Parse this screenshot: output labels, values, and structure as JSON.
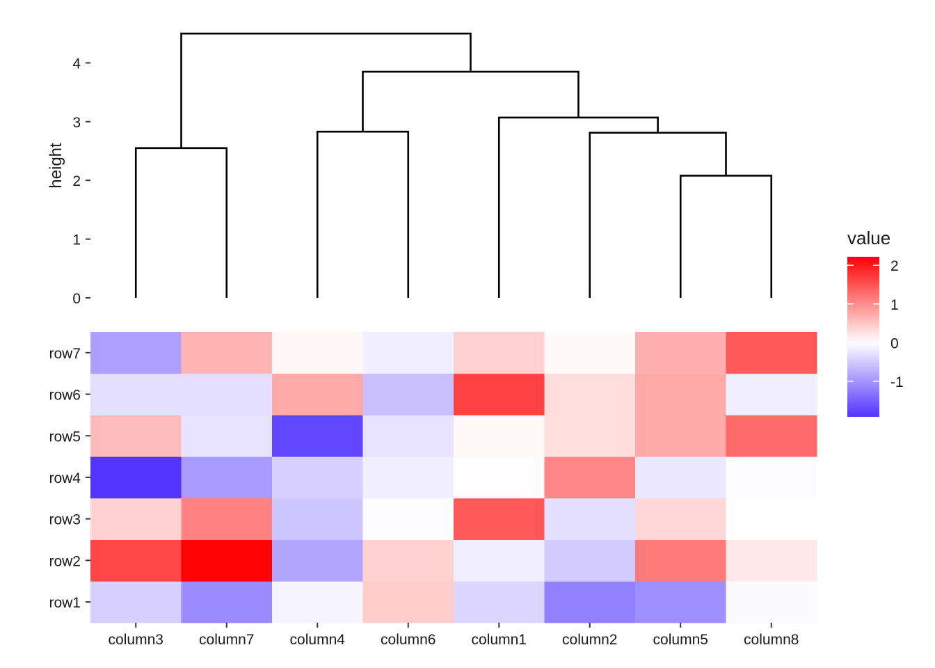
{
  "chart_data": [
    {
      "type": "dendrogram",
      "ylabel": "height",
      "ylim": [
        0,
        4.5
      ],
      "yticks": [
        0,
        1,
        2,
        3,
        4
      ],
      "leaves": [
        "column3",
        "column7",
        "column4",
        "column6",
        "column1",
        "column2",
        "column5",
        "column8"
      ],
      "merges": [
        {
          "left": "column3",
          "right": "column7",
          "height": 2.55
        },
        {
          "left": "column4",
          "right": "column6",
          "height": 2.83
        },
        {
          "left": "column5",
          "right": "column8",
          "height": 2.08
        },
        {
          "left": "column2",
          "right": "column5+column8",
          "height": 2.81
        },
        {
          "left": "column1",
          "right": "column2+column5+column8",
          "height": 3.07
        },
        {
          "left": "column4+column6",
          "right": "column1+column2+column5+column8",
          "height": 3.85
        },
        {
          "left": "column3+column7",
          "right": "column4+column6+column1+column2+column5+column8",
          "height": 4.5
        }
      ]
    },
    {
      "type": "heatmap",
      "columns": [
        "column3",
        "column7",
        "column4",
        "column6",
        "column1",
        "column2",
        "column5",
        "column8"
      ],
      "rows": [
        "row1",
        "row2",
        "row3",
        "row4",
        "row5",
        "row6",
        "row7"
      ],
      "values": [
        [
          -0.45,
          -1.1,
          -0.1,
          0.45,
          -0.4,
          -1.2,
          -1.05,
          -0.05
        ],
        [
          1.6,
          2.2,
          -0.85,
          0.4,
          -0.15,
          -0.5,
          1.15,
          0.2
        ],
        [
          0.4,
          1.1,
          -0.55,
          -0.02,
          1.45,
          -0.3,
          0.35,
          0.0
        ],
        [
          -1.9,
          -0.95,
          -0.45,
          -0.15,
          0.02,
          1.05,
          -0.22,
          -0.02
        ],
        [
          0.6,
          -0.25,
          -1.75,
          -0.25,
          0.05,
          0.3,
          0.75,
          1.3
        ],
        [
          -0.3,
          -0.3,
          0.75,
          -0.6,
          1.65,
          0.3,
          0.75,
          -0.15
        ],
        [
          -0.9,
          0.65,
          0.08,
          -0.15,
          0.4,
          0.05,
          0.7,
          1.45
        ]
      ],
      "color_low": "#5233FF",
      "color_mid": "#FFFFFF",
      "color_high": "#FF0000",
      "value_range": [
        -1.92,
        2.22
      ]
    }
  ],
  "legend": {
    "title": "value",
    "ticks": [
      2,
      1,
      0,
      -1
    ],
    "tick_labels": [
      "2",
      "1",
      "0",
      "-1"
    ],
    "placement": "right"
  }
}
